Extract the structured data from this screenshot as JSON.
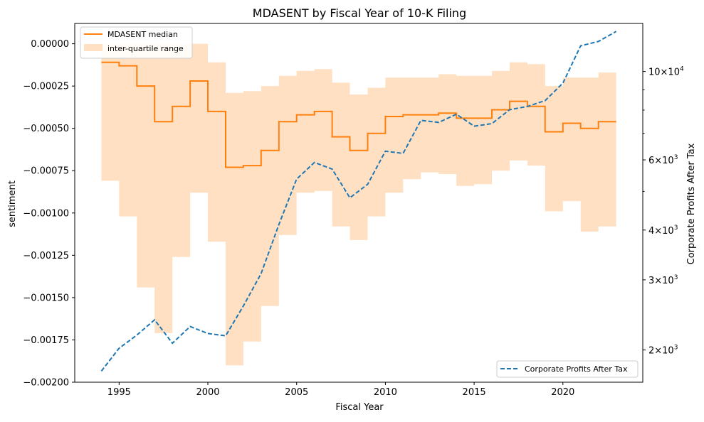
{
  "chart_data": {
    "type": "line",
    "title": "MDASENT by Fiscal Year of 10-K Filing",
    "xlabel": "Fiscal Year",
    "ylabel": "sentiment",
    "y2label": "Corporate Profits After Tax",
    "xlim": [
      1992.5,
      2024.5
    ],
    "ylim": [
      -0.002,
      0.00012
    ],
    "y2lim": [
      1660,
      13200
    ],
    "y2scale": "log",
    "x_ticks": [
      1995,
      2000,
      2005,
      2010,
      2015,
      2020
    ],
    "y_ticks": [
      {
        "value": 0,
        "label": "0.00000"
      },
      {
        "value": -0.00025,
        "label": "−0.00025"
      },
      {
        "value": -0.0005,
        "label": "−0.00050"
      },
      {
        "value": -0.00075,
        "label": "−0.00075"
      },
      {
        "value": -0.001,
        "label": "−0.00100"
      },
      {
        "value": -0.00125,
        "label": "−0.00125"
      },
      {
        "value": -0.0015,
        "label": "−0.00150"
      },
      {
        "value": -0.00175,
        "label": "−0.00175"
      },
      {
        "value": -0.002,
        "label": "−0.00200"
      }
    ],
    "y2_ticks": [
      {
        "value": 2000,
        "base": "2",
        "exp": "3"
      },
      {
        "value": 3000,
        "base": "3",
        "exp": "3"
      },
      {
        "value": 4000,
        "base": "4",
        "exp": "3"
      },
      {
        "value": 6000,
        "base": "6",
        "exp": "3"
      },
      {
        "value": 10000,
        "base": "10",
        "exp": "4"
      }
    ],
    "y2_minor_ticks": [
      5000,
      7000,
      8000,
      9000
    ],
    "x": [
      1994,
      1995,
      1996,
      1997,
      1998,
      1999,
      2000,
      2001,
      2002,
      2003,
      2004,
      2005,
      2006,
      2007,
      2008,
      2009,
      2010,
      2011,
      2012,
      2013,
      2014,
      2015,
      2016,
      2017,
      2018,
      2019,
      2020,
      2021,
      2022,
      2023
    ],
    "series": [
      {
        "name": "MDASENT median",
        "color": "#ff7f0e",
        "style": "step",
        "values": [
          -0.00011,
          -0.00013,
          -0.00025,
          -0.00046,
          -0.00037,
          -0.00022,
          -0.0004,
          -0.00073,
          -0.00072,
          -0.00063,
          -0.00046,
          -0.00042,
          -0.0004,
          -0.00055,
          -0.00063,
          -0.00053,
          -0.00043,
          -0.00042,
          -0.00042,
          -0.00041,
          -0.00044,
          -0.00044,
          -0.00039,
          -0.00034,
          -0.00037,
          -0.00052,
          -0.00047,
          -0.0005,
          -0.00046,
          -0.00046
        ]
      },
      {
        "name": "inter-quartile range",
        "color": "#ffe0c2",
        "style": "step-band",
        "q1": [
          -0.00081,
          -0.00102,
          -0.00144,
          -0.00171,
          -0.00126,
          -0.00088,
          -0.00117,
          -0.0019,
          -0.00176,
          -0.00155,
          -0.00113,
          -0.00088,
          -0.00087,
          -0.00108,
          -0.00116,
          -0.00102,
          -0.00088,
          -0.0008,
          -0.00076,
          -0.00077,
          -0.00084,
          -0.00083,
          -0.00075,
          -0.00069,
          -0.00072,
          -0.00099,
          -0.00093,
          -0.00111,
          -0.00108,
          -0.00108
        ],
        "q3": [
          0.0,
          0.0,
          0.0,
          0.0,
          0.0,
          0.0,
          -0.00011,
          -0.00029,
          -0.00028,
          -0.00025,
          -0.00019,
          -0.00016,
          -0.00015,
          -0.00023,
          -0.0003,
          -0.00026,
          -0.0002,
          -0.0002,
          -0.0002,
          -0.00018,
          -0.00019,
          -0.00019,
          -0.00016,
          -0.00011,
          -0.00012,
          -0.00025,
          -0.0002,
          -0.0002,
          -0.00017,
          -0.00017
        ]
      },
      {
        "name": "Corporate Profits After Tax",
        "color": "#1f77b4",
        "style": "dashed",
        "axis": "right",
        "values": [
          1770,
          2020,
          2180,
          2380,
          2080,
          2290,
          2200,
          2170,
          2580,
          3110,
          4130,
          5370,
          5910,
          5690,
          4820,
          5210,
          6310,
          6230,
          7540,
          7450,
          7810,
          7290,
          7400,
          8020,
          8170,
          8450,
          9350,
          11600,
          11900,
          12600
        ]
      }
    ],
    "legend_upper": {
      "position": "top-left",
      "entries": [
        "MDASENT median",
        "inter-quartile range"
      ]
    },
    "legend_lower": {
      "position": "bottom-right",
      "entries": [
        "Corporate Profits After Tax"
      ]
    },
    "grid": false
  }
}
